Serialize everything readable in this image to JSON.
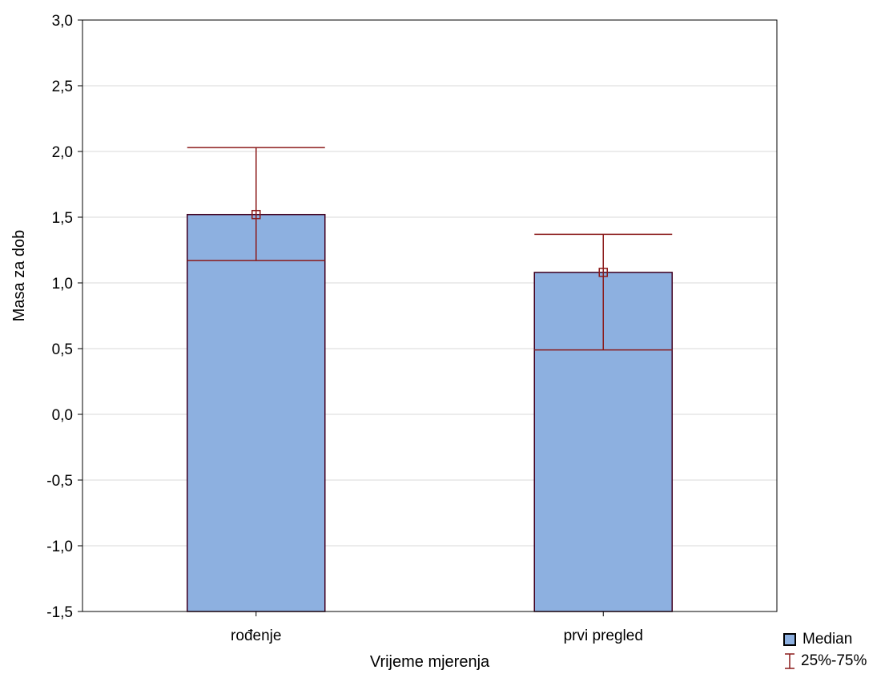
{
  "chart_data": {
    "type": "bar",
    "xlabel": "Vrijeme mjerenja",
    "ylabel": "Masa za dob",
    "ylim": [
      -1.5,
      3.0
    ],
    "yticks": [
      {
        "value": -1.5,
        "label": "-1,5"
      },
      {
        "value": -1.0,
        "label": "-1,0"
      },
      {
        "value": -0.5,
        "label": "-0,5"
      },
      {
        "value": 0.0,
        "label": "0,0"
      },
      {
        "value": 0.5,
        "label": "0,5"
      },
      {
        "value": 1.0,
        "label": "1,0"
      },
      {
        "value": 1.5,
        "label": "1,5"
      },
      {
        "value": 2.0,
        "label": "2,0"
      },
      {
        "value": 2.5,
        "label": "2,5"
      },
      {
        "value": 3.0,
        "label": "3,0"
      }
    ],
    "categories": [
      "rođenje",
      "prvi pregled"
    ],
    "median": [
      1.52,
      1.08
    ],
    "q25": [
      1.17,
      0.49
    ],
    "q75": [
      2.03,
      1.37
    ],
    "grid": true,
    "legend_position": "bottom-right",
    "colors": {
      "bar": "#8db0e0",
      "bar_edge": "#400020",
      "whisker": "#8b1a1a"
    }
  },
  "legend": {
    "median_label": "Median",
    "iqr_label": "25%-75%"
  }
}
